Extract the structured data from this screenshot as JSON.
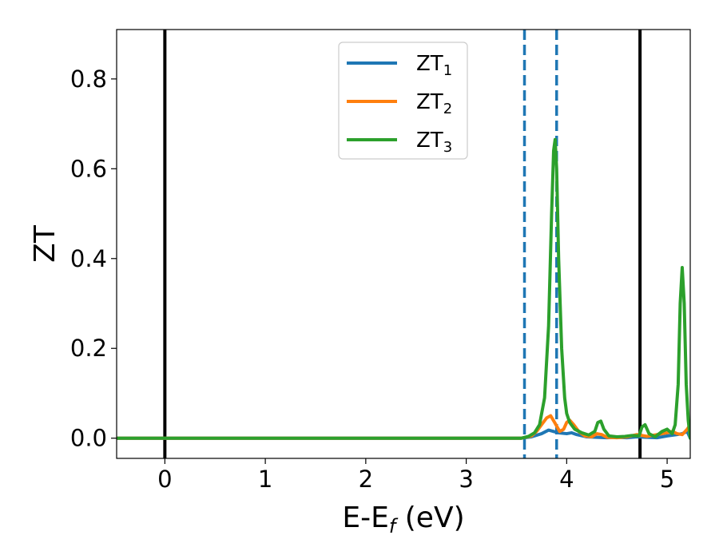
{
  "chart_data": {
    "type": "line",
    "xlabel": {
      "main": "E-E",
      "sub": "f",
      "suffix": " (eV)"
    },
    "ylabel": "ZT",
    "xlim": [
      -0.48,
      5.23
    ],
    "ylim": [
      -0.045,
      0.91
    ],
    "xticks": [
      0,
      1,
      2,
      3,
      4,
      5
    ],
    "xtick_labels": [
      "0",
      "1",
      "2",
      "3",
      "4",
      "5"
    ],
    "yticks": [
      0.0,
      0.2,
      0.4,
      0.6,
      0.8
    ],
    "ytick_labels": [
      "0.0",
      "0.2",
      "0.4",
      "0.6",
      "0.8"
    ],
    "grid": false,
    "legend_position": "top-center",
    "vlines": [
      {
        "x": 0.0,
        "style": "solid",
        "color": "#000000"
      },
      {
        "x": 4.73,
        "style": "solid",
        "color": "#000000"
      },
      {
        "x": 3.58,
        "style": "dashed",
        "color": "#1f77b4"
      },
      {
        "x": 3.9,
        "style": "dashed",
        "color": "#1f77b4"
      }
    ],
    "series": [
      {
        "name": {
          "main": "ZT",
          "sub": "1"
        },
        "color": "#1f77b4",
        "x": [
          -0.48,
          3.55,
          3.65,
          3.75,
          3.82,
          3.87,
          3.92,
          4.0,
          4.05,
          4.1,
          4.2,
          4.3,
          4.4,
          4.5,
          4.6,
          4.7,
          4.8,
          4.9,
          5.0,
          5.1,
          5.15,
          5.2,
          5.23
        ],
        "y": [
          0.0,
          0.0,
          0.003,
          0.01,
          0.018,
          0.015,
          0.012,
          0.01,
          0.012,
          0.008,
          0.003,
          0.002,
          0.001,
          0.002,
          0.001,
          0.003,
          0.002,
          0.001,
          0.005,
          0.008,
          0.01,
          0.015,
          0.0
        ]
      },
      {
        "name": {
          "main": "ZT",
          "sub": "2"
        },
        "color": "#ff7f0e",
        "x": [
          -0.48,
          3.55,
          3.65,
          3.7,
          3.75,
          3.8,
          3.84,
          3.88,
          3.93,
          3.97,
          4.0,
          4.03,
          4.07,
          4.12,
          4.18,
          4.25,
          4.3,
          4.35,
          4.4,
          4.5,
          4.6,
          4.7,
          4.75,
          4.8,
          4.9,
          5.0,
          5.05,
          5.1,
          5.15,
          5.2,
          5.23
        ],
        "y": [
          0.0,
          0.0,
          0.005,
          0.015,
          0.03,
          0.045,
          0.05,
          0.035,
          0.015,
          0.02,
          0.035,
          0.04,
          0.03,
          0.015,
          0.005,
          0.003,
          0.01,
          0.008,
          0.002,
          0.001,
          0.003,
          0.008,
          0.006,
          0.004,
          0.008,
          0.012,
          0.015,
          0.01,
          0.008,
          0.02,
          0.03
        ]
      },
      {
        "name": {
          "main": "ZT",
          "sub": "3"
        },
        "color": "#2ca02c",
        "x": [
          -0.48,
          3.55,
          3.62,
          3.68,
          3.73,
          3.78,
          3.82,
          3.85,
          3.87,
          3.885,
          3.9,
          3.92,
          3.95,
          3.98,
          4.0,
          4.03,
          4.08,
          4.15,
          4.22,
          4.28,
          4.31,
          4.34,
          4.37,
          4.42,
          4.5,
          4.58,
          4.65,
          4.72,
          4.75,
          4.78,
          4.82,
          4.88,
          4.95,
          5.0,
          5.05,
          5.08,
          5.11,
          5.13,
          5.15,
          5.17,
          5.19,
          5.21,
          5.23
        ],
        "y": [
          0.0,
          0.0,
          0.004,
          0.012,
          0.03,
          0.09,
          0.25,
          0.5,
          0.64,
          0.665,
          0.6,
          0.4,
          0.2,
          0.09,
          0.055,
          0.035,
          0.02,
          0.012,
          0.007,
          0.015,
          0.035,
          0.038,
          0.02,
          0.005,
          0.003,
          0.004,
          0.006,
          0.005,
          0.025,
          0.03,
          0.01,
          0.003,
          0.015,
          0.02,
          0.01,
          0.03,
          0.12,
          0.3,
          0.38,
          0.3,
          0.12,
          0.04,
          0.0
        ]
      }
    ]
  }
}
